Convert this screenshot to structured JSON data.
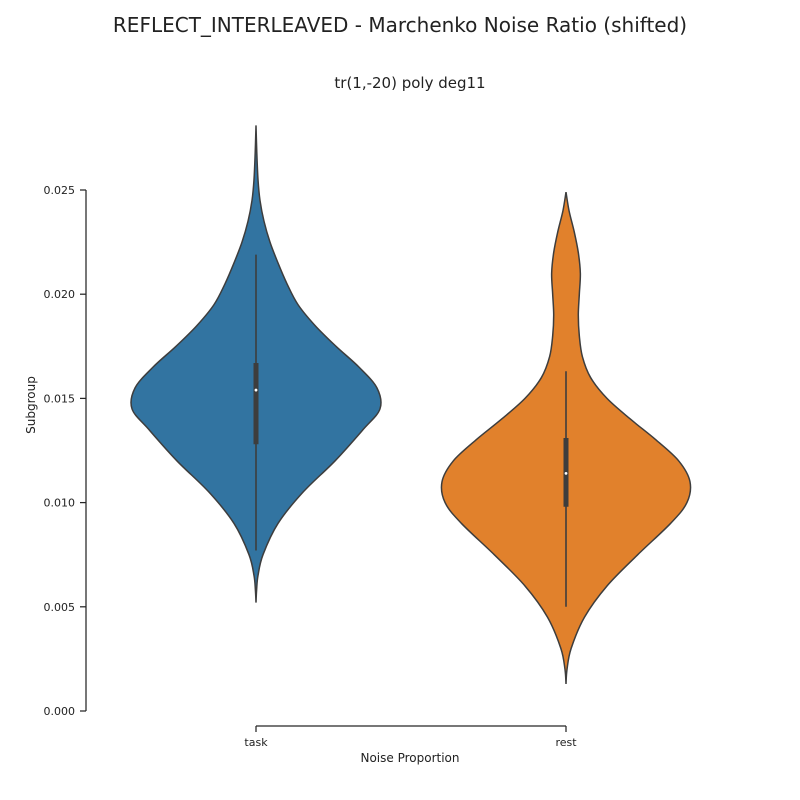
{
  "figure": {
    "suptitle": "REFLECT_INTERLEAVED - Marchenko Noise Ratio (shifted)"
  },
  "chart_data": {
    "type": "violin",
    "title": "tr(1,-20) poly deg11",
    "xlabel": "Noise Proportion",
    "ylabel": "Subgroup",
    "ylim": [
      0.0,
      0.0275
    ],
    "yticks": [
      0.0,
      0.005,
      0.01,
      0.015,
      0.02,
      0.025
    ],
    "ytick_labels": [
      "0.000",
      "0.005",
      "0.010",
      "0.015",
      "0.020",
      "0.025"
    ],
    "grid": false,
    "categories": [
      "task",
      "rest"
    ],
    "series": [
      {
        "category": "task",
        "color": "#3274a1",
        "min": 0.0077,
        "q1": 0.0128,
        "median": 0.0154,
        "q3": 0.0167,
        "max": 0.0219,
        "density": [
          [
            0.0052,
            0.0
          ],
          [
            0.0058,
            0.6
          ],
          [
            0.0065,
            2.0
          ],
          [
            0.0075,
            7.0
          ],
          [
            0.009,
            22.0
          ],
          [
            0.0105,
            47.0
          ],
          [
            0.012,
            79.0
          ],
          [
            0.0135,
            107.0
          ],
          [
            0.0145,
            124.0
          ],
          [
            0.0155,
            121.0
          ],
          [
            0.0165,
            103.0
          ],
          [
            0.0175,
            80.0
          ],
          [
            0.0185,
            59.0
          ],
          [
            0.0195,
            42.0
          ],
          [
            0.0205,
            31.0
          ],
          [
            0.0215,
            22.0
          ],
          [
            0.0225,
            14.0
          ],
          [
            0.0235,
            8.0
          ],
          [
            0.0245,
            4.0
          ],
          [
            0.0255,
            2.0
          ],
          [
            0.0268,
            0.8
          ],
          [
            0.0281,
            0.0
          ]
        ]
      },
      {
        "category": "rest",
        "color": "#e1812c",
        "min": 0.005,
        "q1": 0.0098,
        "median": 0.0114,
        "q3": 0.0131,
        "max": 0.0163,
        "density": [
          [
            0.0013,
            0.0
          ],
          [
            0.002,
            1.0
          ],
          [
            0.003,
            5.0
          ],
          [
            0.0045,
            18.0
          ],
          [
            0.006,
            40.0
          ],
          [
            0.0075,
            70.0
          ],
          [
            0.009,
            102.0
          ],
          [
            0.01,
            118.0
          ],
          [
            0.011,
            121.0
          ],
          [
            0.012,
            110.0
          ],
          [
            0.013,
            88.0
          ],
          [
            0.014,
            63.0
          ],
          [
            0.015,
            40.0
          ],
          [
            0.016,
            24.0
          ],
          [
            0.017,
            16.0
          ],
          [
            0.018,
            13.0
          ],
          [
            0.019,
            12.0
          ],
          [
            0.02,
            13.0
          ],
          [
            0.021,
            14.0
          ],
          [
            0.022,
            12.0
          ],
          [
            0.023,
            8.0
          ],
          [
            0.024,
            3.0
          ],
          [
            0.0249,
            0.0
          ]
        ]
      }
    ]
  }
}
